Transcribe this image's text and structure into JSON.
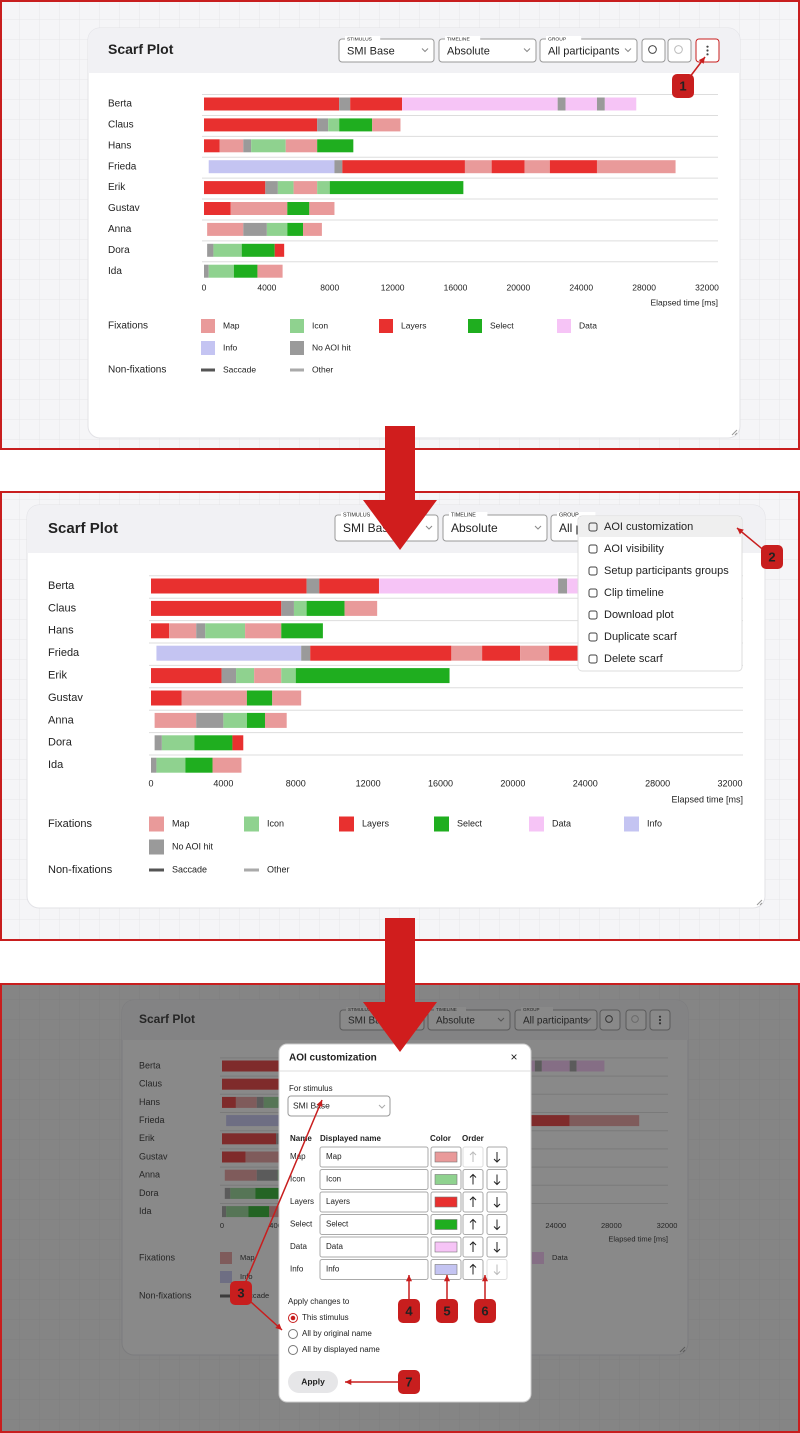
{
  "scarf": {
    "title": "Scarf Plot",
    "controls": [
      {
        "label": "STIMULUS",
        "value": "SMI Base"
      },
      {
        "label": "TIMELINE",
        "value": "Absolute"
      },
      {
        "label": "GROUP",
        "value": "All participants"
      }
    ],
    "aois": [
      {
        "name": "Map",
        "color": "#e99a9a"
      },
      {
        "name": "Icon",
        "color": "#8fd28f"
      },
      {
        "name": "Layers",
        "color": "#e8302f"
      },
      {
        "name": "Select",
        "color": "#1fae1f"
      },
      {
        "name": "Data",
        "color": "#f6c4f6"
      },
      {
        "name": "Info",
        "color": "#c4c4f2"
      },
      {
        "name": "No AOI hit",
        "color": "#9a9a9a"
      }
    ],
    "non_fixations": [
      {
        "name": "Saccade",
        "color": "#555555"
      },
      {
        "name": "Other",
        "color": "#aaaaaa"
      }
    ],
    "fixations_label": "Fixations",
    "non_fixations_label": "Non-fixations",
    "xlim": [
      0,
      32000
    ],
    "xticks": [
      0,
      4000,
      8000,
      12000,
      16000,
      20000,
      24000,
      28000,
      32000
    ],
    "xlabel": "Elapsed time [ms]",
    "participants": [
      {
        "name": "Berta",
        "segments": [
          [
            0,
            8600,
            2
          ],
          [
            8600,
            9300,
            6
          ],
          [
            9300,
            12600,
            2
          ],
          [
            12600,
            22500,
            4
          ],
          [
            22500,
            23000,
            6
          ],
          [
            23000,
            25000,
            4
          ],
          [
            25000,
            25500,
            6
          ],
          [
            25500,
            27500,
            4
          ]
        ]
      },
      {
        "name": "Claus",
        "segments": [
          [
            0,
            7200,
            2
          ],
          [
            7200,
            7900,
            6
          ],
          [
            7900,
            8600,
            1
          ],
          [
            8600,
            10700,
            3
          ],
          [
            10700,
            12500,
            0
          ]
        ]
      },
      {
        "name": "Hans",
        "segments": [
          [
            0,
            1000,
            2
          ],
          [
            1000,
            2500,
            0
          ],
          [
            2500,
            3000,
            6
          ],
          [
            3000,
            5200,
            1
          ],
          [
            5200,
            7200,
            0
          ],
          [
            7200,
            9500,
            3
          ]
        ]
      },
      {
        "name": "Frieda",
        "segments": [
          [
            300,
            8300,
            5
          ],
          [
            8300,
            8800,
            6
          ],
          [
            8800,
            16600,
            2
          ],
          [
            16600,
            18300,
            0
          ],
          [
            18300,
            20400,
            2
          ],
          [
            20400,
            22000,
            0
          ],
          [
            22000,
            25000,
            2
          ],
          [
            25000,
            30000,
            0
          ]
        ]
      },
      {
        "name": "Erik",
        "segments": [
          [
            0,
            3900,
            2
          ],
          [
            3900,
            4700,
            6
          ],
          [
            4700,
            5700,
            1
          ],
          [
            5700,
            7200,
            0
          ],
          [
            7200,
            8000,
            1
          ],
          [
            8000,
            16500,
            3
          ]
        ]
      },
      {
        "name": "Gustav",
        "segments": [
          [
            0,
            1700,
            2
          ],
          [
            1700,
            5300,
            0
          ],
          [
            5300,
            6700,
            3
          ],
          [
            6700,
            8300,
            0
          ]
        ]
      },
      {
        "name": "Anna",
        "segments": [
          [
            200,
            2500,
            0
          ],
          [
            2500,
            4000,
            6
          ],
          [
            4000,
            5300,
            1
          ],
          [
            5300,
            6300,
            3
          ],
          [
            6300,
            7500,
            0
          ]
        ]
      },
      {
        "name": "Dora",
        "segments": [
          [
            200,
            600,
            6
          ],
          [
            600,
            2400,
            1
          ],
          [
            2400,
            4500,
            3
          ],
          [
            4500,
            5100,
            2
          ]
        ]
      },
      {
        "name": "Ida",
        "segments": [
          [
            0,
            300,
            6
          ],
          [
            300,
            1900,
            1
          ],
          [
            1900,
            3400,
            3
          ],
          [
            3400,
            5000,
            0
          ]
        ]
      }
    ]
  },
  "menu": [
    "AOI customization",
    "AOI visibility",
    "Setup participants groups",
    "Clip timeline",
    "Download plot",
    "Duplicate scarf",
    "Delete scarf"
  ],
  "modal": {
    "title": "AOI customization",
    "close": "×",
    "for_stimulus": "For stimulus",
    "stimulus": "SMI Base",
    "headers": [
      "Name",
      "Displayed name",
      "Color",
      "Order"
    ],
    "apply_to": "Apply changes to",
    "options": [
      "This stimulus",
      "All by original name",
      "All by displayed name"
    ],
    "apply": "Apply"
  },
  "annotations": [
    "1",
    "2",
    "3",
    "4",
    "5",
    "6",
    "7"
  ]
}
